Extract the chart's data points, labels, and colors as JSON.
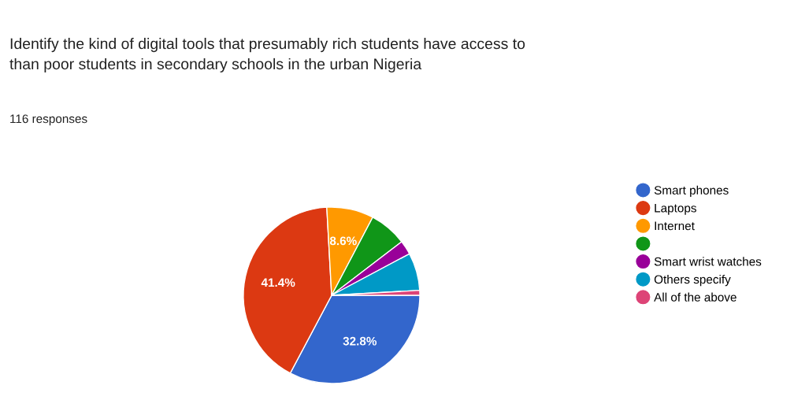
{
  "chart_data": {
    "type": "pie",
    "title": "Identify the kind of digital tools that presumably rich students have access to\nthan poor students in secondary schools in the urban Nigeria",
    "subtitle": "116 responses",
    "categories": [
      "Smart phones",
      "Laptops",
      "Internet",
      null,
      "Smart wrist watches",
      "Others specify",
      "All of the above"
    ],
    "values": [
      32.8,
      41.4,
      8.6,
      6.9,
      2.6,
      6.9,
      0.9
    ],
    "value_labels": [
      "32.8%",
      "41.4%",
      "8.6%",
      null,
      null,
      null,
      null
    ],
    "colors": [
      "#3366cc",
      "#dc3912",
      "#ff9900",
      "#109618",
      "#990099",
      "#0099c6",
      "#dd4477"
    ],
    "legend": "right"
  }
}
